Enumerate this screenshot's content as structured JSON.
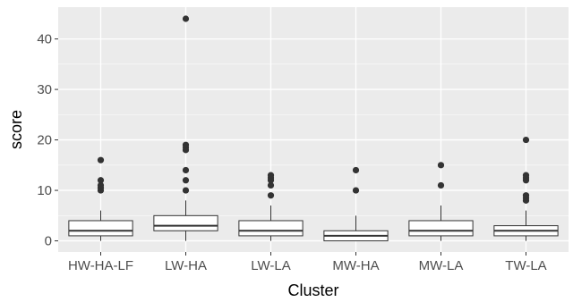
{
  "chart_data": {
    "type": "boxplot",
    "xlabel": "Cluster",
    "ylabel": "score",
    "ylim": [
      -2.2,
      46.3
    ],
    "yticks": [
      0,
      10,
      20,
      30,
      40
    ],
    "grid": true,
    "legend": "none",
    "colors": {
      "panel_bg": "#ebebeb",
      "grid_major": "#ffffff",
      "box_fill": "#ffffff",
      "box_line": "#333333",
      "outlier": "#333333",
      "tick_label": "#4d4d4d",
      "title": "#000000"
    },
    "categories": [
      "HW-HA-LF",
      "LW-HA",
      "LW-LA",
      "MW-HA",
      "MW-LA",
      "TW-LA"
    ],
    "boxes": [
      {
        "category": "HW-HA-LF",
        "q1": 1,
        "median": 2,
        "q3": 4,
        "whisker_low": 0,
        "whisker_high": 6,
        "outliers": [
          10,
          10.5,
          11,
          12,
          16
        ]
      },
      {
        "category": "LW-HA",
        "q1": 2,
        "median": 3,
        "q3": 5,
        "whisker_low": 0,
        "whisker_high": 8,
        "outliers": [
          10,
          12,
          14,
          18,
          18.5,
          19,
          44
        ]
      },
      {
        "category": "LW-LA",
        "q1": 1,
        "median": 2,
        "q3": 4,
        "whisker_low": 0,
        "whisker_high": 7,
        "outliers": [
          9,
          11,
          12,
          12.5,
          13
        ]
      },
      {
        "category": "MW-HA",
        "q1": 0,
        "median": 1,
        "q3": 2,
        "whisker_low": 0,
        "whisker_high": 5,
        "outliers": [
          10,
          14
        ]
      },
      {
        "category": "MW-LA",
        "q1": 1,
        "median": 2,
        "q3": 4,
        "whisker_low": 0,
        "whisker_high": 7,
        "outliers": [
          11,
          15
        ]
      },
      {
        "category": "TW-LA",
        "q1": 1,
        "median": 2,
        "q3": 3,
        "whisker_low": 0,
        "whisker_high": 6,
        "outliers": [
          8,
          8.5,
          9,
          12,
          12.5,
          13,
          20
        ]
      }
    ]
  }
}
